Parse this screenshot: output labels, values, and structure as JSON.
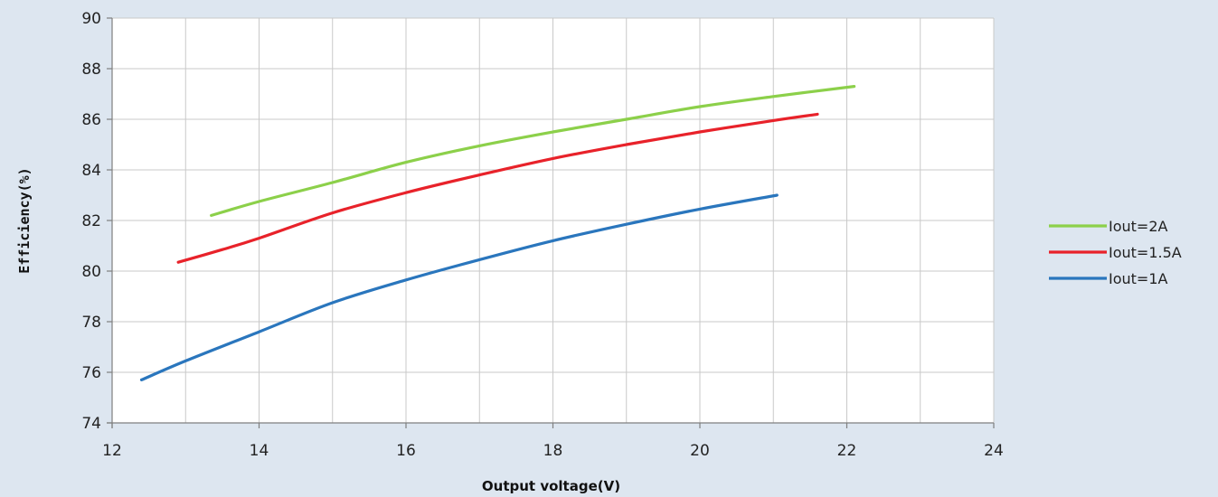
{
  "chart_data": {
    "type": "line",
    "title": "",
    "xlabel": "Output voltage(V)",
    "ylabel": "Efficiency(%)",
    "xlim": [
      12,
      24
    ],
    "ylim": [
      74,
      90
    ],
    "xticks": [
      12,
      14,
      16,
      18,
      20,
      22,
      24
    ],
    "yticks": [
      74,
      76,
      78,
      80,
      82,
      84,
      86,
      88,
      90
    ],
    "grid": true,
    "legend_position": "right",
    "series": [
      {
        "name": "Iout=2A",
        "color": "#8cd04a",
        "x": [
          13.35,
          14,
          15,
          16,
          17,
          18,
          19,
          20,
          21,
          22.1
        ],
        "y": [
          82.2,
          82.75,
          83.5,
          84.3,
          84.95,
          85.5,
          86.0,
          86.5,
          86.9,
          87.3
        ]
      },
      {
        "name": "Iout=1.5A",
        "color": "#e8222a",
        "x": [
          12.9,
          13.5,
          14,
          15,
          16,
          17,
          18,
          19,
          20,
          21,
          21.6
        ],
        "y": [
          80.35,
          80.85,
          81.3,
          82.3,
          83.1,
          83.8,
          84.45,
          85.0,
          85.5,
          85.95,
          86.2
        ]
      },
      {
        "name": "Iout=1A",
        "color": "#2a76bd",
        "x": [
          12.4,
          13,
          14,
          15,
          16,
          17,
          18,
          19,
          20,
          21.05
        ],
        "y": [
          75.7,
          76.45,
          77.6,
          78.75,
          79.65,
          80.45,
          81.2,
          81.85,
          82.45,
          83.0
        ]
      }
    ]
  }
}
